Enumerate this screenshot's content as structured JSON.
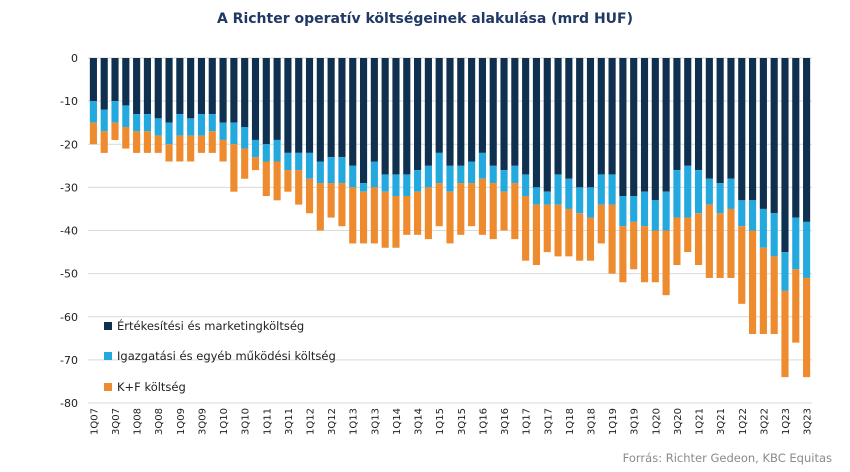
{
  "title": "A Richter operatív költségeinek alakulása (mrd HUF)",
  "source": "Forrás: Richter Gedeon, KBC Equitas",
  "colors": {
    "sales_marketing": "#10304f",
    "admin_other": "#24a9df",
    "rnd": "#ed8b2e",
    "grid": "#d9d9d9",
    "axis_text": "#222222"
  },
  "chart_data": {
    "type": "bar",
    "stacked": true,
    "ylim": [
      -80,
      0
    ],
    "yticks": [
      0,
      -10,
      -20,
      -30,
      -40,
      -50,
      -60,
      -70,
      -80
    ],
    "grid": true,
    "legend_position": "bottom-left",
    "categories": [
      "1Q07",
      "2Q07",
      "3Q07",
      "4Q07",
      "1Q08",
      "2Q08",
      "3Q08",
      "4Q08",
      "1Q09",
      "2Q09",
      "3Q09",
      "4Q09",
      "1Q10",
      "2Q10",
      "3Q10",
      "4Q10",
      "1Q11",
      "2Q11",
      "3Q11",
      "4Q11",
      "1Q12",
      "2Q12",
      "3Q12",
      "4Q12",
      "1Q13",
      "2Q13",
      "3Q13",
      "4Q13",
      "1Q14",
      "2Q14",
      "3Q14",
      "4Q14",
      "1Q15",
      "2Q15",
      "3Q15",
      "4Q15",
      "1Q16",
      "2Q16",
      "3Q16",
      "4Q16",
      "1Q17",
      "2Q17",
      "3Q17",
      "4Q17",
      "1Q18",
      "2Q18",
      "3Q18",
      "4Q18",
      "1Q19",
      "2Q19",
      "3Q19",
      "4Q19",
      "1Q20",
      "2Q20",
      "3Q20",
      "4Q20",
      "1Q21",
      "2Q21",
      "3Q21",
      "4Q21",
      "1Q22",
      "2Q22",
      "3Q22",
      "4Q22",
      "1Q23",
      "2Q23",
      "3Q23"
    ],
    "xtick_labels": [
      "1Q07",
      "3Q07",
      "1Q08",
      "3Q08",
      "1Q09",
      "3Q09",
      "1Q10",
      "3Q10",
      "1Q11",
      "3Q11",
      "1Q12",
      "3Q12",
      "1Q13",
      "3Q13",
      "1Q14",
      "3Q14",
      "1Q15",
      "3Q15",
      "1Q16",
      "3Q16",
      "1Q17",
      "3Q17",
      "1Q18",
      "3Q18",
      "1Q19",
      "3Q19",
      "1Q20",
      "3Q20",
      "1Q21",
      "3Q21",
      "1Q22",
      "3Q22",
      "1Q23",
      "3Q23"
    ],
    "series": [
      {
        "name": "Értékesítési és marketingköltség",
        "values": [
          -10,
          -12,
          -10,
          -11,
          -13,
          -13,
          -14,
          -15,
          -13,
          -14,
          -13,
          -13,
          -15,
          -15,
          -16,
          -19,
          -20,
          -19,
          -22,
          -22,
          -22,
          -24,
          -23,
          -23,
          -25,
          -29,
          -24,
          -27,
          -27,
          -27,
          -26,
          -25,
          -22,
          -25,
          -25,
          -24,
          -22,
          -25,
          -26,
          -25,
          -27,
          -30,
          -31,
          -27,
          -28,
          -30,
          -30,
          -27,
          -27,
          -32,
          -32,
          -31,
          -33,
          -31,
          -26,
          -25,
          -26,
          -28,
          -29,
          -28,
          -33,
          -33,
          -35,
          -36,
          -45,
          -37,
          -38
        ]
      },
      {
        "name": "Igazgatási és egyéb működési költség",
        "values": [
          -5,
          -5,
          -5,
          -5,
          -4,
          -4,
          -4,
          -5,
          -5,
          -4,
          -5,
          -4,
          -4,
          -5,
          -5,
          -4,
          -4,
          -5,
          -4,
          -4,
          -6,
          -5,
          -6,
          -6,
          -5,
          -2,
          -6,
          -4,
          -5,
          -5,
          -5,
          -5,
          -7,
          -6,
          -4,
          -5,
          -6,
          -4,
          -5,
          -4,
          -5,
          -4,
          -3,
          -7,
          -7,
          -6,
          -7,
          -7,
          -7,
          -7,
          -6,
          -8,
          -7,
          -9,
          -11,
          -12,
          -10,
          -6,
          -7,
          -7,
          -6,
          -7,
          -9,
          -10,
          -9,
          -12,
          -13
        ]
      },
      {
        "name": "K+F költség",
        "values": [
          -5,
          -5,
          -4,
          -5,
          -5,
          -5,
          -4,
          -4,
          -6,
          -6,
          -4,
          -5,
          -5,
          -11,
          -7,
          -3,
          -8,
          -9,
          -5,
          -8,
          -8,
          -11,
          -8,
          -10,
          -13,
          -12,
          -13,
          -13,
          -12,
          -9,
          -10,
          -12,
          -10,
          -12,
          -12,
          -10,
          -13,
          -13,
          -9,
          -13,
          -15,
          -14,
          -11,
          -12,
          -11,
          -11,
          -10,
          -9,
          -16,
          -13,
          -11,
          -13,
          -12,
          -15,
          -11,
          -8,
          -12,
          -17,
          -15,
          -16,
          -18,
          -24,
          -20,
          -18,
          -20,
          -17,
          -23
        ]
      }
    ]
  }
}
